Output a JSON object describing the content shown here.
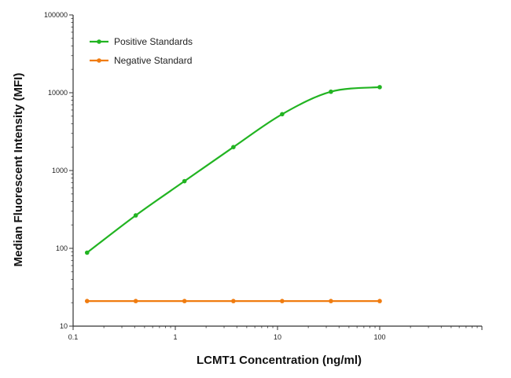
{
  "chart_data": {
    "type": "line",
    "xlabel": "LCMT1 Concentration (ng/ml)",
    "ylabel": "Median Fluorescent Intensity (MFI)",
    "x_scale": "log",
    "y_scale": "log",
    "xlim": [
      0.1,
      1000
    ],
    "ylim": [
      10,
      100000
    ],
    "x_ticks": [
      0.1,
      1,
      10,
      100
    ],
    "x_tick_labels": [
      "0.1",
      "1",
      "10",
      "100"
    ],
    "y_ticks": [
      10,
      100,
      1000,
      10000,
      100000
    ],
    "y_tick_labels": [
      "10",
      "100",
      "1000",
      "10000",
      "100000"
    ],
    "grid": false,
    "legend_position": "top-left",
    "series": [
      {
        "name": "Positive Standards",
        "color": "#22b422",
        "x": [
          0.137,
          0.41,
          1.23,
          3.7,
          11.1,
          33.3,
          100
        ],
        "y": [
          88,
          265,
          730,
          2000,
          5300,
          10300,
          11800
        ]
      },
      {
        "name": "Negative Standard",
        "color": "#f07c10",
        "x": [
          0.137,
          0.41,
          1.23,
          3.7,
          11.1,
          33.3,
          100
        ],
        "y": [
          21,
          21,
          21,
          21,
          21,
          21,
          21
        ]
      }
    ]
  }
}
